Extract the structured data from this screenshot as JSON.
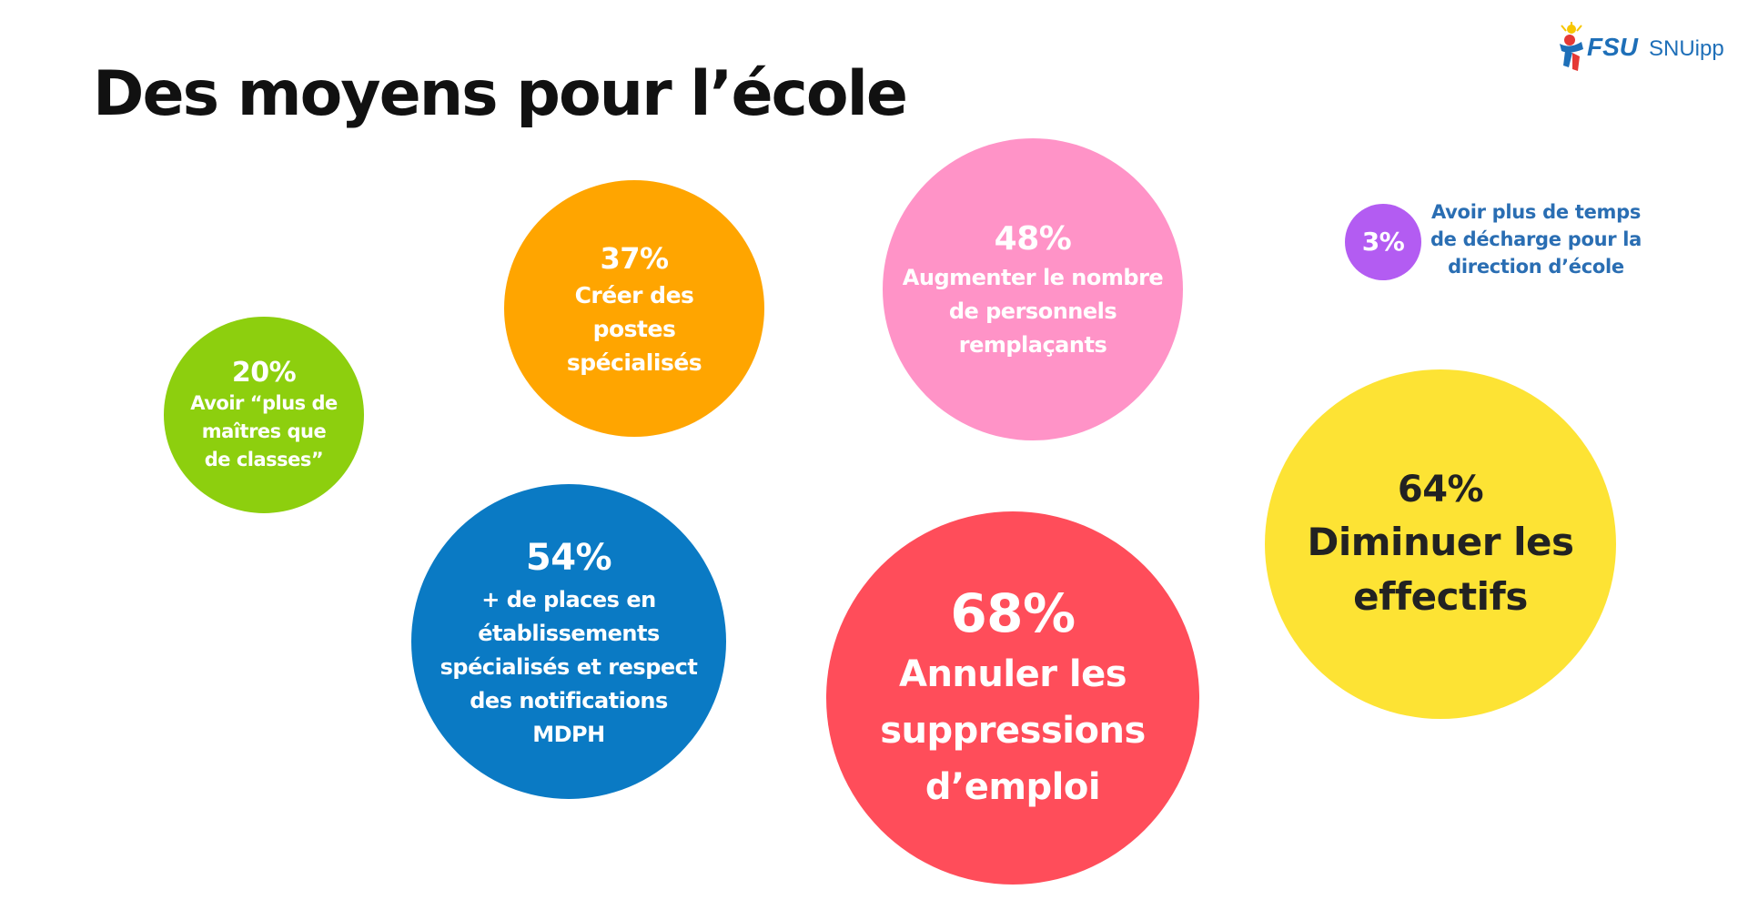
{
  "page": {
    "title": "Des moyens pour l’école"
  },
  "logo": {
    "fsu": "FSU",
    "snuipp": "SNUipp",
    "colors": {
      "brand_blue": "#1e6fb8",
      "figure_red": "#e53935",
      "figure_yellow": "#f7c600",
      "figure_blue": "#1e6fb8"
    }
  },
  "chart_data": {
    "type": "bubble",
    "title": "Des moyens pour l’école",
    "unit": "%",
    "items": [
      {
        "key": "plus_maitres",
        "value": 20,
        "value_label": "20%",
        "label": "Avoir “plus de\nmaîtres que\nde classes”",
        "color": "#8dcf0e",
        "text_color": "#ffffff"
      },
      {
        "key": "postes_specialises",
        "value": 37,
        "value_label": "37%",
        "label": "Créer des\npostes\nspécialisés",
        "color": "#ffa500",
        "text_color": "#ffffff"
      },
      {
        "key": "remplacants",
        "value": 48,
        "value_label": "48%",
        "label": "Augmenter le nombre\nde personnels\nremplaçants",
        "color": "#ff93c7",
        "text_color": "#ffffff"
      },
      {
        "key": "decharge_direction",
        "value": 3,
        "value_label": "3%",
        "label": "Avoir plus de temps\nde décharge pour la\ndirection d’école",
        "color": "#b35cf2",
        "text_color": "#ffffff",
        "label_color": "#2a6eb3"
      },
      {
        "key": "places_etablissements",
        "value": 54,
        "value_label": "54%",
        "label": "+ de places en\nétablissements\nspécialisés et respect\ndes notifications\nMDPH",
        "color": "#0a7ac4",
        "text_color": "#ffffff"
      },
      {
        "key": "annuler_suppressions",
        "value": 68,
        "value_label": "68%",
        "label": "Annuler les\nsuppressions\nd’emploi",
        "color": "#ff4d5a",
        "text_color": "#ffffff"
      },
      {
        "key": "diminuer_effectifs",
        "value": 64,
        "value_label": "64%",
        "label": "Diminuer les\neffectifs",
        "color": "#fde334",
        "text_color": "#222222"
      }
    ]
  }
}
